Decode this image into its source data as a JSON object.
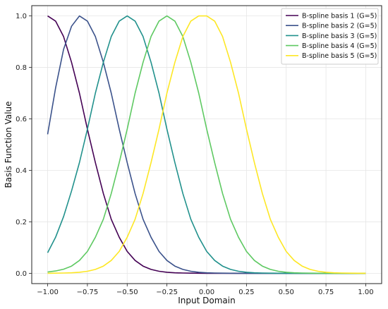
{
  "chart_data": {
    "type": "line",
    "title": "",
    "xlabel": "Input Domain",
    "ylabel": "Basis Function Value",
    "xlim": [
      -1.1,
      1.1
    ],
    "ylim": [
      -0.04,
      1.04
    ],
    "xticks": [
      -1.0,
      -0.75,
      -0.5,
      -0.25,
      0.0,
      0.25,
      0.5,
      0.75,
      1.0
    ],
    "xtick_labels": [
      "−1.00",
      "−0.75",
      "−0.50",
      "−0.25",
      "0.00",
      "0.25",
      "0.50",
      "0.75",
      "1.00"
    ],
    "yticks": [
      0.0,
      0.2,
      0.4,
      0.6,
      0.8,
      1.0
    ],
    "ytick_labels": [
      "0.0",
      "0.2",
      "0.4",
      "0.6",
      "0.8",
      "1.0"
    ],
    "grid": true,
    "legend": "top-right",
    "x": [
      -1.0,
      -0.95,
      -0.9,
      -0.85,
      -0.8,
      -0.75,
      -0.7,
      -0.65,
      -0.6,
      -0.55,
      -0.5,
      -0.45,
      -0.4,
      -0.35,
      -0.3,
      -0.25,
      -0.2,
      -0.15,
      -0.1,
      -0.05,
      0.0,
      0.05,
      0.1,
      0.15,
      0.2,
      0.25,
      0.3,
      0.35,
      0.4,
      0.45,
      0.5,
      0.55,
      0.6,
      0.65,
      0.7,
      0.75,
      0.8,
      0.85,
      0.9,
      0.95,
      1.0
    ],
    "series": [
      {
        "name": "B-spline basis 1 (G=5)",
        "color": "#440154",
        "x": [
          -1.0,
          -0.95,
          -0.9,
          -0.85,
          -0.8,
          -0.75,
          -0.7,
          -0.65,
          -0.6,
          -0.55,
          -0.5,
          -0.45,
          -0.4,
          -0.35,
          -0.3,
          -0.25,
          -0.2,
          -0.15,
          -0.1,
          -0.05,
          0.0,
          0.05,
          0.1,
          0.15,
          0.2,
          0.25,
          0.3,
          0.35,
          0.4,
          0.45,
          0.5,
          0.55,
          0.6,
          0.65,
          0.7,
          0.75,
          0.8,
          0.85,
          0.9,
          0.95,
          1.0
        ],
        "values": [
          1.0,
          0.98,
          0.92,
          0.82,
          0.7,
          0.56,
          0.43,
          0.31,
          0.21,
          0.14,
          0.085,
          0.05,
          0.028,
          0.015,
          0.008,
          0.004,
          0.002,
          0.001,
          0.0005,
          0.0002,
          0.0001,
          0.0,
          0.0,
          0.0,
          0.0,
          0.0,
          0.0,
          0.0,
          0.0,
          0.0,
          0.0,
          0.0,
          0.0,
          0.0,
          0.0,
          0.0,
          0.0,
          0.0,
          0.0,
          0.0,
          0.0
        ]
      },
      {
        "name": "B-spline basis 2 (G=5)",
        "color": "#3b528b",
        "x": [
          -1.0,
          -0.95,
          -0.9,
          -0.85,
          -0.8,
          -0.75,
          -0.7,
          -0.65,
          -0.6,
          -0.55,
          -0.5,
          -0.45,
          -0.4,
          -0.35,
          -0.3,
          -0.25,
          -0.2,
          -0.15,
          -0.1,
          -0.05,
          0.0,
          0.05,
          0.1,
          0.15,
          0.2,
          0.25,
          0.3,
          0.35,
          0.4,
          0.45,
          0.5,
          0.55,
          0.6,
          0.65,
          0.7,
          0.75,
          0.8,
          0.85,
          0.9,
          0.95,
          1.0
        ],
        "values": [
          0.54,
          0.72,
          0.87,
          0.96,
          1.0,
          0.98,
          0.92,
          0.82,
          0.7,
          0.56,
          0.43,
          0.31,
          0.21,
          0.14,
          0.085,
          0.05,
          0.028,
          0.015,
          0.008,
          0.004,
          0.002,
          0.001,
          0.0005,
          0.0002,
          0.0001,
          0.0,
          0.0,
          0.0,
          0.0,
          0.0,
          0.0,
          0.0,
          0.0,
          0.0,
          0.0,
          0.0,
          0.0,
          0.0,
          0.0,
          0.0,
          0.0
        ]
      },
      {
        "name": "B-spline basis 3 (G=5)",
        "color": "#21918c",
        "x": [
          -1.0,
          -0.95,
          -0.9,
          -0.85,
          -0.8,
          -0.75,
          -0.7,
          -0.65,
          -0.6,
          -0.55,
          -0.5,
          -0.45,
          -0.4,
          -0.35,
          -0.3,
          -0.25,
          -0.2,
          -0.15,
          -0.1,
          -0.05,
          0.0,
          0.05,
          0.1,
          0.15,
          0.2,
          0.25,
          0.3,
          0.35,
          0.4,
          0.45,
          0.5,
          0.55,
          0.6,
          0.65,
          0.7,
          0.75,
          0.8,
          0.85,
          0.9,
          0.95,
          1.0
        ],
        "values": [
          0.08,
          0.14,
          0.22,
          0.32,
          0.43,
          0.56,
          0.7,
          0.82,
          0.92,
          0.98,
          1.0,
          0.98,
          0.92,
          0.82,
          0.7,
          0.56,
          0.43,
          0.31,
          0.21,
          0.14,
          0.085,
          0.05,
          0.028,
          0.015,
          0.008,
          0.004,
          0.002,
          0.001,
          0.0005,
          0.0002,
          0.0001,
          0.0,
          0.0,
          0.0,
          0.0,
          0.0,
          0.0,
          0.0,
          0.0,
          0.0,
          0.0
        ]
      },
      {
        "name": "B-spline basis 4 (G=5)",
        "color": "#5ec962",
        "x": [
          -1.0,
          -0.95,
          -0.9,
          -0.85,
          -0.8,
          -0.75,
          -0.7,
          -0.65,
          -0.6,
          -0.55,
          -0.5,
          -0.45,
          -0.4,
          -0.35,
          -0.3,
          -0.25,
          -0.2,
          -0.15,
          -0.1,
          -0.05,
          0.0,
          0.05,
          0.1,
          0.15,
          0.2,
          0.25,
          0.3,
          0.35,
          0.4,
          0.45,
          0.5,
          0.55,
          0.6,
          0.65,
          0.7,
          0.75,
          0.8,
          0.85,
          0.9,
          0.95,
          1.0
        ],
        "values": [
          0.005,
          0.009,
          0.016,
          0.028,
          0.05,
          0.085,
          0.14,
          0.21,
          0.31,
          0.43,
          0.56,
          0.7,
          0.82,
          0.92,
          0.98,
          1.0,
          0.98,
          0.92,
          0.82,
          0.7,
          0.56,
          0.43,
          0.31,
          0.21,
          0.14,
          0.085,
          0.05,
          0.028,
          0.015,
          0.008,
          0.004,
          0.002,
          0.001,
          0.0005,
          0.0002,
          0.0001,
          0.0,
          0.0,
          0.0,
          0.0,
          0.0
        ]
      },
      {
        "name": "B-spline basis 5 (G=5)",
        "color": "#fde725",
        "x": [
          -1.0,
          -0.95,
          -0.9,
          -0.85,
          -0.8,
          -0.75,
          -0.7,
          -0.65,
          -0.6,
          -0.55,
          -0.5,
          -0.45,
          -0.4,
          -0.35,
          -0.3,
          -0.25,
          -0.2,
          -0.15,
          -0.1,
          -0.05,
          0.0,
          0.05,
          0.1,
          0.15,
          0.2,
          0.25,
          0.3,
          0.35,
          0.4,
          0.45,
          0.5,
          0.55,
          0.6,
          0.65,
          0.7,
          0.75,
          0.8,
          0.85,
          0.9,
          0.95,
          1.0
        ],
        "values": [
          0.0,
          0.0005,
          0.001,
          0.002,
          0.004,
          0.008,
          0.015,
          0.028,
          0.05,
          0.085,
          0.14,
          0.21,
          0.31,
          0.43,
          0.56,
          0.7,
          0.82,
          0.92,
          0.98,
          1.0,
          1.0,
          0.98,
          0.92,
          0.82,
          0.7,
          0.56,
          0.43,
          0.31,
          0.21,
          0.14,
          0.085,
          0.05,
          0.028,
          0.015,
          0.008,
          0.004,
          0.002,
          0.001,
          0.0005,
          0.0002,
          0.0001
        ]
      }
    ]
  }
}
